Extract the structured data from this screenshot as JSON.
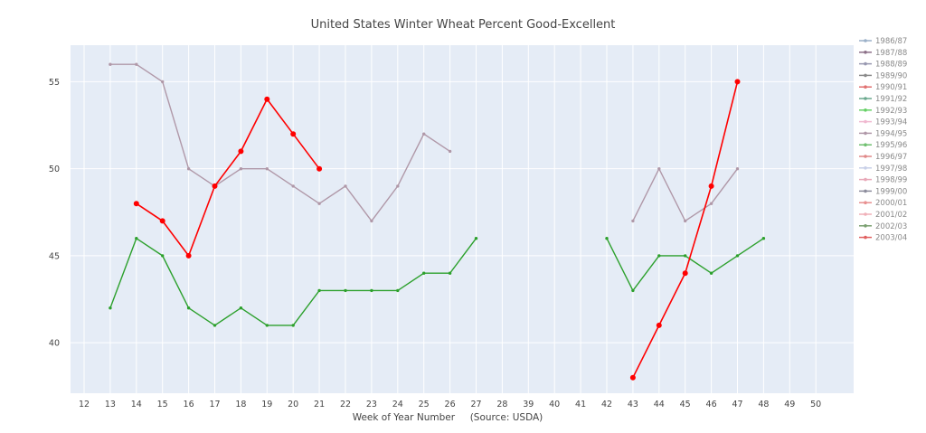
{
  "chart_data": {
    "type": "line",
    "title": "United States Winter Wheat Percent Good-Excellent",
    "xlabel": "Week of Year Number     (Source: USDA)",
    "ylabel": "",
    "categories": [
      "12",
      "13",
      "14",
      "15",
      "16",
      "17",
      "18",
      "19",
      "20",
      "21",
      "22",
      "23",
      "24",
      "25",
      "26",
      "27",
      "28",
      "39",
      "40",
      "41",
      "42",
      "43",
      "44",
      "45",
      "46",
      "47",
      "48",
      "49",
      "50"
    ],
    "y_ticks": [
      40,
      45,
      50,
      55
    ],
    "ylim": [
      37.1,
      57.1
    ],
    "grid": true,
    "legend_position": "right",
    "legend": [
      {
        "name": "1986/87",
        "color": "#9bb0c8"
      },
      {
        "name": "1987/88",
        "color": "#8c7088"
      },
      {
        "name": "1988/89",
        "color": "#9898b0"
      },
      {
        "name": "1989/90",
        "color": "#8a8a8a"
      },
      {
        "name": "1990/91",
        "color": "#e07070"
      },
      {
        "name": "1991/92",
        "color": "#6aa88e"
      },
      {
        "name": "1992/93",
        "color": "#66d066"
      },
      {
        "name": "1993/94",
        "color": "#f0b8d0"
      },
      {
        "name": "1994/95",
        "color": "#b098a8"
      },
      {
        "name": "1995/96",
        "color": "#70c070"
      },
      {
        "name": "1996/97",
        "color": "#e08888"
      },
      {
        "name": "1997/98",
        "color": "#c8d0e8"
      },
      {
        "name": "1998/99",
        "color": "#e8a8b8"
      },
      {
        "name": "1999/00",
        "color": "#8c8c9c"
      },
      {
        "name": "2000/01",
        "color": "#e89090"
      },
      {
        "name": "2001/02",
        "color": "#f0b0b8"
      },
      {
        "name": "2002/03",
        "color": "#7aa070"
      },
      {
        "name": "2003/04",
        "color": "#e06060"
      }
    ],
    "series": [
      {
        "name": "1994/95",
        "color": "#b098a8",
        "marker": "small",
        "points": [
          [
            "13",
            56
          ],
          [
            "14",
            56
          ],
          [
            "15",
            55
          ],
          [
            "16",
            50
          ],
          [
            "17",
            49
          ],
          [
            "18",
            50
          ],
          [
            "19",
            50
          ],
          [
            "20",
            49
          ],
          [
            "21",
            48
          ],
          [
            "22",
            49
          ],
          [
            "23",
            47
          ],
          [
            "24",
            49
          ],
          [
            "25",
            52
          ],
          [
            "26",
            51
          ],
          [
            "43",
            47
          ],
          [
            "44",
            50
          ],
          [
            "45",
            47
          ],
          [
            "46",
            48
          ],
          [
            "47",
            50
          ]
        ]
      },
      {
        "name": "2002/03",
        "color": "#2ca02c",
        "marker": "small",
        "points": [
          [
            "13",
            42
          ],
          [
            "14",
            46
          ],
          [
            "15",
            45
          ],
          [
            "16",
            42
          ],
          [
            "17",
            41
          ],
          [
            "18",
            42
          ],
          [
            "19",
            41
          ],
          [
            "20",
            41
          ],
          [
            "21",
            43
          ],
          [
            "22",
            43
          ],
          [
            "23",
            43
          ],
          [
            "24",
            43
          ],
          [
            "25",
            44
          ],
          [
            "26",
            44
          ],
          [
            "27",
            46
          ],
          [
            "42",
            46
          ],
          [
            "43",
            43
          ],
          [
            "44",
            45
          ],
          [
            "45",
            45
          ],
          [
            "46",
            44
          ],
          [
            "47",
            45
          ],
          [
            "48",
            46
          ]
        ]
      },
      {
        "name": "2003/04",
        "color": "#ff0000",
        "marker": "large",
        "points": [
          [
            "14",
            48
          ],
          [
            "15",
            47
          ],
          [
            "16",
            45
          ],
          [
            "17",
            49
          ],
          [
            "18",
            51
          ],
          [
            "19",
            54
          ],
          [
            "20",
            52
          ],
          [
            "21",
            50
          ],
          [
            "43",
            38
          ],
          [
            "44",
            41
          ],
          [
            "45",
            44
          ],
          [
            "46",
            49
          ],
          [
            "47",
            55
          ]
        ]
      }
    ]
  }
}
